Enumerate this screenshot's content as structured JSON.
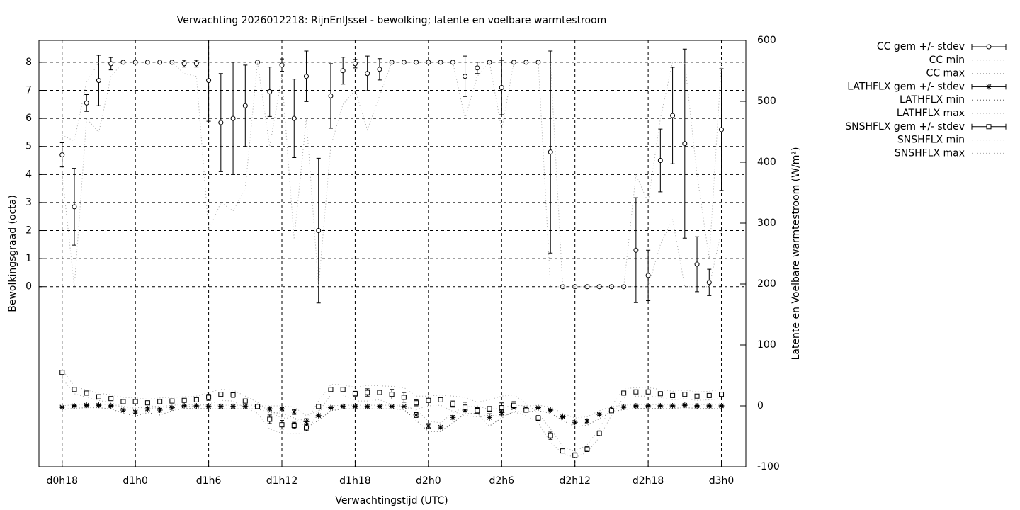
{
  "chart_data": {
    "type": "errorbar",
    "title": "Verwachting 2026012218: RijnEnIJssel - bewolking; latente en voelbare warmtestroom",
    "x_label": "Verwachtingstijd (UTC)",
    "y_label": "Bewolkingsgraad (octa)",
    "y2_label": "Latente en Voelbare warmtestroom (W/m²)",
    "x": [
      0,
      1,
      2,
      3,
      4,
      5,
      6,
      7,
      8,
      9,
      10,
      11,
      12,
      13,
      14,
      15,
      16,
      17,
      18,
      19,
      20,
      21,
      22,
      23,
      24,
      25,
      26,
      27,
      28,
      29,
      30,
      31,
      32,
      33,
      34,
      35,
      36,
      37,
      38,
      39,
      40,
      41,
      42,
      43,
      44,
      45,
      46,
      47,
      48,
      49,
      50,
      51,
      52,
      53,
      54
    ],
    "xlim": [
      -1.9,
      56
    ],
    "xticks": [
      {
        "value": 0,
        "label": "d0h18"
      },
      {
        "value": 6,
        "label": "d1h0"
      },
      {
        "value": 12,
        "label": "d1h6"
      },
      {
        "value": 18,
        "label": "d1h12"
      },
      {
        "value": 24,
        "label": "d1h18"
      },
      {
        "value": 30,
        "label": "d2h0"
      },
      {
        "value": 36,
        "label": "d2h6"
      },
      {
        "value": 42,
        "label": "d2h12"
      },
      {
        "value": 48,
        "label": "d2h18"
      },
      {
        "value": 54,
        "label": "d3h0"
      }
    ],
    "ylim": [
      -6.42,
      8.78
    ],
    "yticks": [
      0,
      1,
      2,
      3,
      4,
      5,
      6,
      7,
      8
    ],
    "y2lim": [
      -100,
      600
    ],
    "y2ticks": [
      -100,
      0,
      100,
      200,
      300,
      400,
      500,
      600
    ],
    "grid": true,
    "legend": "outside right",
    "series": [
      {
        "name": "CC gem +/- stdev",
        "color": "#000000",
        "marker": "circle",
        "values": [
          4.7,
          2.85,
          6.55,
          7.35,
          7.95,
          8,
          8,
          8,
          8,
          8,
          7.95,
          7.95,
          7.35,
          5.85,
          6.0,
          6.45,
          8,
          6.95,
          7.9,
          6.0,
          7.5,
          2.0,
          6.8,
          7.7,
          7.95,
          7.6,
          7.75,
          8,
          8,
          8,
          8,
          8,
          8,
          7.5,
          7.8,
          8,
          7.1,
          8,
          8,
          8,
          4.8,
          0,
          0,
          0,
          0,
          0,
          0,
          1.3,
          0.4,
          4.5,
          6.1,
          5.1,
          0.8,
          0.15,
          5.6
        ],
        "errors": [
          0.43,
          1.37,
          0.3,
          0.9,
          0.22,
          0,
          0,
          0,
          0,
          0,
          0.12,
          0.12,
          1.45,
          1.75,
          2.0,
          1.45,
          0,
          0.88,
          0.22,
          1.4,
          0.9,
          2.58,
          1.15,
          0.48,
          0.15,
          0.62,
          0.38,
          0,
          0,
          0,
          0,
          0,
          0,
          0.72,
          0.2,
          0,
          0.97,
          0,
          0,
          0,
          3.6,
          0,
          0,
          0,
          0,
          0,
          0,
          1.87,
          0.9,
          1.12,
          1.72,
          3.37,
          0.98,
          0.47,
          2.17
        ]
      },
      {
        "name": "CC min",
        "color": "#aaaaaa",
        "values": [
          4,
          0,
          6,
          5.5,
          7.5,
          8,
          8,
          8,
          8,
          8,
          7.6,
          7.5,
          2,
          3,
          2.7,
          3.5,
          8,
          5,
          7.5,
          1.7,
          6,
          0,
          5,
          6.5,
          7,
          5.6,
          6.8,
          8,
          8,
          8,
          8,
          8,
          8,
          6,
          7.5,
          8,
          5.6,
          8,
          8,
          8,
          0,
          0,
          0,
          0,
          0,
          0,
          0,
          0,
          0,
          1.5,
          2.4,
          0,
          0,
          0,
          2
        ]
      },
      {
        "name": "CC max",
        "color": "#aaaaaa",
        "values": [
          5.4,
          5.2,
          7.3,
          8,
          8,
          8,
          8,
          8,
          8,
          8,
          8,
          8,
          8,
          8,
          8,
          8,
          8,
          8,
          8,
          8,
          8,
          8,
          8,
          8,
          8,
          8,
          8,
          8,
          8,
          8,
          8,
          8,
          8,
          8,
          8,
          8,
          8,
          8,
          8,
          8,
          8,
          0,
          0,
          0,
          0,
          0,
          0,
          4,
          3,
          6,
          8,
          8,
          4,
          1,
          8
        ]
      },
      {
        "name": "LATHFLX gem +/- stdev",
        "color": "#000000",
        "marker": "star",
        "axis": "y2",
        "values": [
          -2,
          0,
          1,
          1,
          0,
          -7,
          -10,
          -5,
          -7,
          -3,
          0,
          0,
          -1,
          -1,
          -1,
          -1,
          -1,
          -5,
          -5,
          -10,
          -26,
          -16,
          -3,
          -1,
          -1,
          -1,
          -1,
          -1,
          -1,
          -15,
          -33,
          -35,
          -19,
          -7,
          -5,
          -19,
          -11,
          -3,
          -4,
          -3,
          -7,
          -18,
          -27,
          -25,
          -14,
          -5,
          -2,
          0,
          0,
          0,
          0,
          1,
          0,
          0,
          0
        ],
        "errors": [
          1,
          1,
          1,
          1,
          1,
          2,
          2,
          2,
          3,
          2,
          1,
          1,
          1,
          1,
          1,
          1,
          1,
          2,
          2,
          4,
          5,
          2,
          1,
          1,
          1,
          1,
          1,
          1,
          1,
          4,
          4,
          2,
          3,
          2,
          2,
          6,
          4,
          2,
          2,
          1,
          1,
          1,
          2,
          2,
          2,
          1,
          1,
          1,
          1,
          1,
          1,
          1,
          1,
          1,
          1
        ]
      },
      {
        "name": "LATHFLX min",
        "color": "#555555",
        "axis": "y2",
        "values": [
          -6,
          -4,
          -3,
          -3,
          -5,
          -12,
          -17,
          -11,
          -15,
          -8,
          -4,
          -4,
          -5,
          -5,
          -5,
          -5,
          -5,
          -11,
          -12,
          -20,
          -36,
          -24,
          -8,
          -5,
          -5,
          -5,
          -5,
          -5,
          -6,
          -24,
          -42,
          -42,
          -28,
          -13,
          -12,
          -33,
          -20,
          -9,
          -10,
          -8,
          -12,
          -24,
          -34,
          -32,
          -21,
          -10,
          -6,
          -4,
          -4,
          -4,
          -4,
          -3,
          -4,
          -4,
          -4
        ]
      },
      {
        "name": "LATHFLX max",
        "color": "#aaaaaa",
        "axis": "y2",
        "values": [
          0,
          2,
          3,
          3,
          2,
          -2,
          -4,
          0,
          -1,
          1,
          2,
          2,
          1,
          1,
          1,
          1,
          1,
          0,
          0,
          -2,
          -16,
          -8,
          0,
          1,
          1,
          1,
          1,
          1,
          1,
          -7,
          -25,
          -28,
          -11,
          -2,
          0,
          -6,
          -3,
          1,
          0,
          1,
          -2,
          -12,
          -20,
          -18,
          -8,
          -1,
          1,
          2,
          2,
          2,
          2,
          3,
          2,
          2,
          2
        ]
      },
      {
        "name": "SNSHFLX gem +/- stdev",
        "color": "#000000",
        "marker": "square",
        "axis": "y2",
        "values": [
          55,
          27,
          21,
          15,
          12,
          7,
          7,
          5,
          7,
          8,
          9,
          10,
          14,
          19,
          18,
          8,
          -1,
          -22,
          -31,
          -32,
          -36,
          -1,
          27,
          27,
          20,
          22,
          22,
          19,
          14,
          5,
          9,
          10,
          3,
          -2,
          -8,
          -5,
          -3,
          1,
          -7,
          -20,
          -49,
          -74,
          -81,
          -71,
          -45,
          -8,
          21,
          23,
          23,
          20,
          17,
          19,
          16,
          17,
          19
        ],
        "errors": [
          3,
          2,
          1,
          1,
          3,
          2,
          1,
          1,
          1,
          1,
          1,
          1,
          5,
          3,
          4,
          2,
          1,
          7,
          7,
          5,
          5,
          2,
          1,
          1,
          4,
          6,
          3,
          8,
          8,
          5,
          1,
          2,
          5,
          8,
          4,
          4,
          8,
          6,
          2,
          4,
          6,
          3,
          4,
          4,
          4,
          2,
          1,
          1,
          1,
          1,
          1,
          1,
          1,
          1,
          3
        ]
      },
      {
        "name": "SNSHFLX min",
        "color": "#aaaaaa",
        "axis": "y2",
        "values": [
          45,
          20,
          14,
          9,
          5,
          -1,
          -2,
          -4,
          -3,
          -2,
          -1,
          0,
          3,
          9,
          8,
          -3,
          -12,
          -38,
          -45,
          -45,
          -45,
          -10,
          18,
          18,
          8,
          8,
          10,
          2,
          -2,
          -6,
          0,
          1,
          -9,
          -16,
          -18,
          -15,
          -18,
          -10,
          -16,
          -28,
          -60,
          -78,
          -85,
          -76,
          -52,
          -15,
          14,
          16,
          16,
          14,
          10,
          12,
          9,
          10,
          12
        ]
      },
      {
        "name": "SNSHFLX max",
        "color": "#aaaaaa",
        "axis": "y2",
        "values": [
          60,
          32,
          26,
          21,
          18,
          14,
          13,
          11,
          13,
          14,
          15,
          16,
          22,
          27,
          26,
          16,
          6,
          -10,
          -20,
          -20,
          -25,
          8,
          35,
          35,
          30,
          34,
          33,
          32,
          30,
          16,
          16,
          18,
          16,
          14,
          6,
          10,
          16,
          18,
          4,
          -12,
          -38,
          -66,
          -75,
          -64,
          -38,
          0,
          28,
          30,
          30,
          27,
          24,
          26,
          23,
          24,
          27
        ]
      }
    ]
  }
}
